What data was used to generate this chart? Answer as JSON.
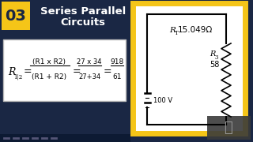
{
  "bg_color": "#1a2744",
  "title_box_color": "#f5c518",
  "title_number": "03",
  "title_text_line1": "Series Parallel",
  "title_text_line2": "Circuits",
  "formula_box_bg": "#ffffff",
  "circuit_box_border": "#f5c518",
  "circuit_box_bg": "#ffffff",
  "rt_value": "15.049Ω",
  "r3_value": "58",
  "battery_label": "100 V"
}
